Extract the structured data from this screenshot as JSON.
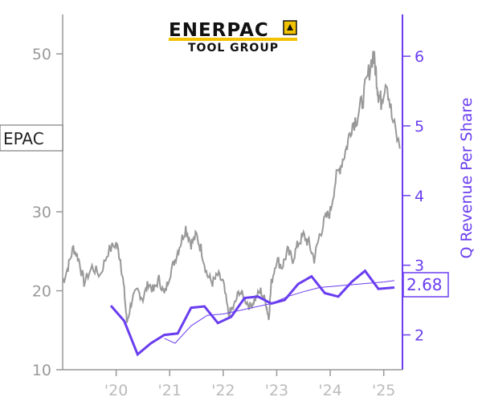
{
  "logo": {
    "main": "ENERPAC",
    "sub": "TOOL GROUP",
    "accent_color": "#f2c200",
    "icon": "enerpac-mark-icon"
  },
  "ticker": "EPAC",
  "last_value_label": "2.68",
  "colors": {
    "price": "#999999",
    "revenue": "#6a3df0",
    "trend": "#6a3df0",
    "left_axis": "#999999",
    "right_axis": "#6a3df0"
  },
  "chart_data": {
    "type": "line",
    "x_range": [
      2019.0,
      2025.35
    ],
    "left_axis": {
      "range": [
        10,
        55
      ],
      "ticks": [
        10,
        20,
        30,
        40,
        50
      ],
      "tick_labels": [
        "10",
        "20",
        "30",
        "",
        "50"
      ]
    },
    "right_axis": {
      "label": "Q Revenue Per Share",
      "range": [
        1.5,
        6.6
      ],
      "ticks": [
        2,
        3,
        4,
        5,
        6
      ],
      "tick_labels": [
        "2",
        "3",
        "4",
        "5",
        "6"
      ]
    },
    "x_ticks": [
      {
        "x": 2020.0,
        "label": "'20"
      },
      {
        "x": 2021.0,
        "label": "'21"
      },
      {
        "x": 2022.0,
        "label": "'22"
      },
      {
        "x": 2023.0,
        "label": "'23"
      },
      {
        "x": 2024.0,
        "label": "'24"
      },
      {
        "x": 2025.0,
        "label": "'25"
      }
    ],
    "series": [
      {
        "axis": "left",
        "points": [
          [
            2019.0,
            21
          ],
          [
            2019.1,
            23
          ],
          [
            2019.2,
            25.5
          ],
          [
            2019.3,
            24
          ],
          [
            2019.4,
            21
          ],
          [
            2019.55,
            23
          ],
          [
            2019.7,
            22
          ],
          [
            2019.85,
            25
          ],
          [
            2020.0,
            26
          ],
          [
            2020.08,
            24
          ],
          [
            2020.15,
            20
          ],
          [
            2020.2,
            16
          ],
          [
            2020.3,
            19
          ],
          [
            2020.4,
            20
          ],
          [
            2020.5,
            19
          ],
          [
            2020.6,
            21
          ],
          [
            2020.7,
            20
          ],
          [
            2020.8,
            21.5
          ],
          [
            2020.9,
            19.5
          ],
          [
            2021.0,
            22
          ],
          [
            2021.1,
            24
          ],
          [
            2021.2,
            26
          ],
          [
            2021.3,
            28
          ],
          [
            2021.4,
            26
          ],
          [
            2021.5,
            27
          ],
          [
            2021.6,
            25
          ],
          [
            2021.7,
            22
          ],
          [
            2021.8,
            21
          ],
          [
            2021.9,
            22
          ],
          [
            2022.0,
            21
          ],
          [
            2022.1,
            17
          ],
          [
            2022.2,
            18
          ],
          [
            2022.3,
            20
          ],
          [
            2022.4,
            19
          ],
          [
            2022.5,
            18
          ],
          [
            2022.6,
            19
          ],
          [
            2022.7,
            20
          ],
          [
            2022.8,
            18.5
          ],
          [
            2022.85,
            16.5
          ],
          [
            2022.9,
            21
          ],
          [
            2023.0,
            24
          ],
          [
            2023.1,
            23
          ],
          [
            2023.2,
            25
          ],
          [
            2023.3,
            24
          ],
          [
            2023.4,
            26
          ],
          [
            2023.5,
            27
          ],
          [
            2023.6,
            26
          ],
          [
            2023.7,
            24
          ],
          [
            2023.8,
            27
          ],
          [
            2023.9,
            29
          ],
          [
            2024.0,
            30
          ],
          [
            2024.1,
            34
          ],
          [
            2024.2,
            36
          ],
          [
            2024.3,
            38
          ],
          [
            2024.4,
            41
          ],
          [
            2024.5,
            42
          ],
          [
            2024.6,
            44
          ],
          [
            2024.7,
            47
          ],
          [
            2024.8,
            50
          ],
          [
            2024.85,
            48
          ],
          [
            2024.9,
            45
          ],
          [
            2024.95,
            44
          ],
          [
            2025.05,
            47
          ],
          [
            2025.15,
            42
          ],
          [
            2025.3,
            38
          ]
        ]
      },
      {
        "axis": "right",
        "points": [
          [
            2019.9,
            2.42
          ],
          [
            2020.15,
            2.2
          ],
          [
            2020.4,
            1.72
          ],
          [
            2020.65,
            1.88
          ],
          [
            2020.9,
            2.0
          ],
          [
            2021.15,
            2.02
          ],
          [
            2021.4,
            2.39
          ],
          [
            2021.65,
            2.41
          ],
          [
            2021.9,
            2.17
          ],
          [
            2022.15,
            2.26
          ],
          [
            2022.4,
            2.53
          ],
          [
            2022.65,
            2.55
          ],
          [
            2022.9,
            2.45
          ],
          [
            2023.15,
            2.5
          ],
          [
            2023.4,
            2.73
          ],
          [
            2023.65,
            2.84
          ],
          [
            2023.9,
            2.6
          ],
          [
            2024.15,
            2.55
          ],
          [
            2024.4,
            2.76
          ],
          [
            2024.65,
            2.92
          ],
          [
            2024.9,
            2.66
          ],
          [
            2025.2,
            2.68
          ]
        ]
      },
      {
        "axis": "right",
        "points": [
          [
            2020.9,
            1.95
          ],
          [
            2021.1,
            1.88
          ],
          [
            2021.4,
            2.13
          ],
          [
            2021.7,
            2.28
          ],
          [
            2022.0,
            2.3
          ],
          [
            2022.3,
            2.35
          ],
          [
            2022.6,
            2.4
          ],
          [
            2022.9,
            2.45
          ],
          [
            2023.2,
            2.55
          ],
          [
            2023.5,
            2.62
          ],
          [
            2023.8,
            2.68
          ],
          [
            2024.1,
            2.7
          ],
          [
            2024.4,
            2.72
          ],
          [
            2024.7,
            2.74
          ],
          [
            2025.0,
            2.76
          ],
          [
            2025.2,
            2.78
          ]
        ]
      }
    ]
  }
}
